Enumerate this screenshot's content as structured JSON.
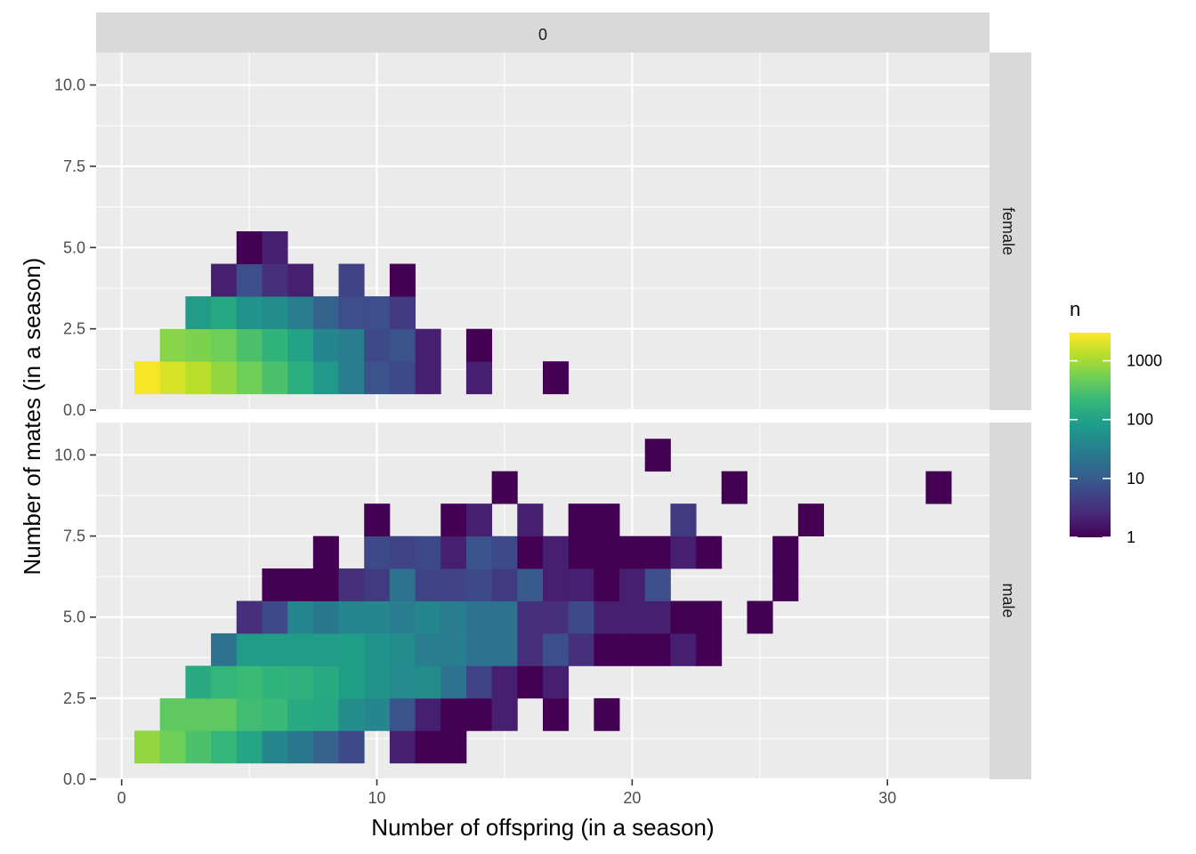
{
  "chart_data": {
    "type": "heatmap",
    "title": "",
    "xlabel": "Number of offspring (in a season)",
    "ylabel": "Number of mates (in a season)",
    "column_strip": "0",
    "xlim": [
      -1,
      34
    ],
    "ylim": [
      0,
      11
    ],
    "x_ticks": [
      0,
      10,
      20,
      30
    ],
    "x_tick_labels": [
      "0",
      "10",
      "20",
      "30"
    ],
    "y_ticks": [
      0,
      2.5,
      5,
      7.5,
      10
    ],
    "y_tick_labels": [
      "0.0",
      "2.5",
      "5.0",
      "7.5",
      "10.0"
    ],
    "bin_width": 1,
    "grid": true,
    "legend": {
      "title": "n",
      "scale": "log10",
      "placement": "right",
      "range": [
        1,
        3000
      ],
      "ticks": [
        1,
        10,
        100,
        1000
      ],
      "tick_labels": [
        "1",
        "10",
        "100",
        "1000"
      ],
      "colors": [
        "#440154",
        "#482878",
        "#3e4989",
        "#31688e",
        "#26828e",
        "#1f9e89",
        "#35b779",
        "#6ece58",
        "#b5de2b",
        "#fde725"
      ]
    },
    "panels": [
      {
        "label": "female",
        "cells": [
          {
            "x": 1,
            "y": 1,
            "n": 2800
          },
          {
            "x": 2,
            "y": 1,
            "n": 1900
          },
          {
            "x": 3,
            "y": 1,
            "n": 1300
          },
          {
            "x": 4,
            "y": 1,
            "n": 800
          },
          {
            "x": 5,
            "y": 1,
            "n": 500
          },
          {
            "x": 6,
            "y": 1,
            "n": 300
          },
          {
            "x": 7,
            "y": 1,
            "n": 150
          },
          {
            "x": 8,
            "y": 1,
            "n": 70
          },
          {
            "x": 9,
            "y": 1,
            "n": 30
          },
          {
            "x": 10,
            "y": 1,
            "n": 8
          },
          {
            "x": 11,
            "y": 1,
            "n": 6
          },
          {
            "x": 12,
            "y": 1,
            "n": 2
          },
          {
            "x": 14,
            "y": 1,
            "n": 2
          },
          {
            "x": 17,
            "y": 1,
            "n": 1
          },
          {
            "x": 2,
            "y": 2,
            "n": 700
          },
          {
            "x": 3,
            "y": 2,
            "n": 600
          },
          {
            "x": 4,
            "y": 2,
            "n": 500
          },
          {
            "x": 5,
            "y": 2,
            "n": 300
          },
          {
            "x": 6,
            "y": 2,
            "n": 180
          },
          {
            "x": 7,
            "y": 2,
            "n": 100
          },
          {
            "x": 8,
            "y": 2,
            "n": 40
          },
          {
            "x": 9,
            "y": 2,
            "n": 30
          },
          {
            "x": 10,
            "y": 2,
            "n": 6
          },
          {
            "x": 11,
            "y": 2,
            "n": 8
          },
          {
            "x": 12,
            "y": 2,
            "n": 2
          },
          {
            "x": 14,
            "y": 2,
            "n": 1
          },
          {
            "x": 3,
            "y": 3,
            "n": 80
          },
          {
            "x": 4,
            "y": 3,
            "n": 120
          },
          {
            "x": 5,
            "y": 3,
            "n": 60
          },
          {
            "x": 6,
            "y": 3,
            "n": 50
          },
          {
            "x": 7,
            "y": 3,
            "n": 30
          },
          {
            "x": 8,
            "y": 3,
            "n": 12
          },
          {
            "x": 9,
            "y": 3,
            "n": 7
          },
          {
            "x": 10,
            "y": 3,
            "n": 7
          },
          {
            "x": 11,
            "y": 3,
            "n": 4
          },
          {
            "x": 4,
            "y": 4,
            "n": 2
          },
          {
            "x": 5,
            "y": 4,
            "n": 7
          },
          {
            "x": 6,
            "y": 4,
            "n": 3
          },
          {
            "x": 7,
            "y": 4,
            "n": 2
          },
          {
            "x": 9,
            "y": 4,
            "n": 5
          },
          {
            "x": 11,
            "y": 4,
            "n": 1
          },
          {
            "x": 5,
            "y": 5,
            "n": 1
          },
          {
            "x": 6,
            "y": 5,
            "n": 2
          }
        ]
      },
      {
        "label": "male",
        "cells": [
          {
            "x": 1,
            "y": 1,
            "n": 800
          },
          {
            "x": 2,
            "y": 1,
            "n": 500
          },
          {
            "x": 3,
            "y": 1,
            "n": 300
          },
          {
            "x": 4,
            "y": 1,
            "n": 200
          },
          {
            "x": 5,
            "y": 1,
            "n": 110
          },
          {
            "x": 6,
            "y": 1,
            "n": 40
          },
          {
            "x": 7,
            "y": 1,
            "n": 25
          },
          {
            "x": 8,
            "y": 1,
            "n": 12
          },
          {
            "x": 9,
            "y": 1,
            "n": 6
          },
          {
            "x": 11,
            "y": 1,
            "n": 2
          },
          {
            "x": 12,
            "y": 1,
            "n": 1
          },
          {
            "x": 13,
            "y": 1,
            "n": 1
          },
          {
            "x": 2,
            "y": 2,
            "n": 400
          },
          {
            "x": 3,
            "y": 2,
            "n": 400
          },
          {
            "x": 4,
            "y": 2,
            "n": 400
          },
          {
            "x": 5,
            "y": 2,
            "n": 250
          },
          {
            "x": 6,
            "y": 2,
            "n": 220
          },
          {
            "x": 7,
            "y": 2,
            "n": 130
          },
          {
            "x": 8,
            "y": 2,
            "n": 120
          },
          {
            "x": 9,
            "y": 2,
            "n": 50
          },
          {
            "x": 10,
            "y": 2,
            "n": 40
          },
          {
            "x": 11,
            "y": 2,
            "n": 8
          },
          {
            "x": 12,
            "y": 2,
            "n": 2
          },
          {
            "x": 13,
            "y": 2,
            "n": 1
          },
          {
            "x": 14,
            "y": 2,
            "n": 1
          },
          {
            "x": 15,
            "y": 2,
            "n": 2
          },
          {
            "x": 17,
            "y": 2,
            "n": 1
          },
          {
            "x": 19,
            "y": 2,
            "n": 1
          },
          {
            "x": 3,
            "y": 3,
            "n": 130
          },
          {
            "x": 4,
            "y": 3,
            "n": 200
          },
          {
            "x": 5,
            "y": 3,
            "n": 230
          },
          {
            "x": 6,
            "y": 3,
            "n": 180
          },
          {
            "x": 7,
            "y": 3,
            "n": 160
          },
          {
            "x": 8,
            "y": 3,
            "n": 130
          },
          {
            "x": 9,
            "y": 3,
            "n": 90
          },
          {
            "x": 10,
            "y": 3,
            "n": 60
          },
          {
            "x": 11,
            "y": 3,
            "n": 45
          },
          {
            "x": 12,
            "y": 3,
            "n": 50
          },
          {
            "x": 13,
            "y": 3,
            "n": 20
          },
          {
            "x": 14,
            "y": 3,
            "n": 5
          },
          {
            "x": 15,
            "y": 3,
            "n": 2
          },
          {
            "x": 16,
            "y": 3,
            "n": 1
          },
          {
            "x": 17,
            "y": 3,
            "n": 2
          },
          {
            "x": 4,
            "y": 4,
            "n": 20
          },
          {
            "x": 5,
            "y": 4,
            "n": 80
          },
          {
            "x": 6,
            "y": 4,
            "n": 80
          },
          {
            "x": 7,
            "y": 4,
            "n": 80
          },
          {
            "x": 8,
            "y": 4,
            "n": 80
          },
          {
            "x": 9,
            "y": 4,
            "n": 90
          },
          {
            "x": 10,
            "y": 4,
            "n": 60
          },
          {
            "x": 11,
            "y": 4,
            "n": 50
          },
          {
            "x": 12,
            "y": 4,
            "n": 30
          },
          {
            "x": 13,
            "y": 4,
            "n": 30
          },
          {
            "x": 14,
            "y": 4,
            "n": 20
          },
          {
            "x": 15,
            "y": 4,
            "n": 20
          },
          {
            "x": 16,
            "y": 4,
            "n": 3
          },
          {
            "x": 17,
            "y": 4,
            "n": 7
          },
          {
            "x": 18,
            "y": 4,
            "n": 3
          },
          {
            "x": 19,
            "y": 4,
            "n": 1
          },
          {
            "x": 20,
            "y": 4,
            "n": 1
          },
          {
            "x": 21,
            "y": 4,
            "n": 1
          },
          {
            "x": 22,
            "y": 4,
            "n": 2
          },
          {
            "x": 23,
            "y": 4,
            "n": 1
          },
          {
            "x": 5,
            "y": 5,
            "n": 3
          },
          {
            "x": 6,
            "y": 5,
            "n": 6
          },
          {
            "x": 7,
            "y": 5,
            "n": 40
          },
          {
            "x": 8,
            "y": 5,
            "n": 25
          },
          {
            "x": 9,
            "y": 5,
            "n": 40
          },
          {
            "x": 10,
            "y": 5,
            "n": 40
          },
          {
            "x": 11,
            "y": 5,
            "n": 30
          },
          {
            "x": 12,
            "y": 5,
            "n": 40
          },
          {
            "x": 13,
            "y": 5,
            "n": 30
          },
          {
            "x": 14,
            "y": 5,
            "n": 20
          },
          {
            "x": 15,
            "y": 5,
            "n": 20
          },
          {
            "x": 16,
            "y": 5,
            "n": 3
          },
          {
            "x": 17,
            "y": 5,
            "n": 3
          },
          {
            "x": 18,
            "y": 5,
            "n": 6
          },
          {
            "x": 19,
            "y": 5,
            "n": 2
          },
          {
            "x": 20,
            "y": 5,
            "n": 2
          },
          {
            "x": 21,
            "y": 5,
            "n": 2
          },
          {
            "x": 22,
            "y": 5,
            "n": 1
          },
          {
            "x": 23,
            "y": 5,
            "n": 1
          },
          {
            "x": 25,
            "y": 5,
            "n": 1
          },
          {
            "x": 6,
            "y": 6,
            "n": 1
          },
          {
            "x": 7,
            "y": 6,
            "n": 1
          },
          {
            "x": 8,
            "y": 6,
            "n": 1
          },
          {
            "x": 9,
            "y": 6,
            "n": 3
          },
          {
            "x": 10,
            "y": 6,
            "n": 4
          },
          {
            "x": 11,
            "y": 6,
            "n": 20
          },
          {
            "x": 12,
            "y": 6,
            "n": 5
          },
          {
            "x": 13,
            "y": 6,
            "n": 5
          },
          {
            "x": 14,
            "y": 6,
            "n": 6
          },
          {
            "x": 15,
            "y": 6,
            "n": 4
          },
          {
            "x": 16,
            "y": 6,
            "n": 10
          },
          {
            "x": 17,
            "y": 6,
            "n": 2
          },
          {
            "x": 18,
            "y": 6,
            "n": 2
          },
          {
            "x": 19,
            "y": 6,
            "n": 1
          },
          {
            "x": 20,
            "y": 6,
            "n": 2
          },
          {
            "x": 21,
            "y": 6,
            "n": 7
          },
          {
            "x": 26,
            "y": 6,
            "n": 1
          },
          {
            "x": 8,
            "y": 7,
            "n": 1
          },
          {
            "x": 10,
            "y": 7,
            "n": 6
          },
          {
            "x": 11,
            "y": 7,
            "n": 5
          },
          {
            "x": 12,
            "y": 7,
            "n": 6
          },
          {
            "x": 13,
            "y": 7,
            "n": 2
          },
          {
            "x": 14,
            "y": 7,
            "n": 8
          },
          {
            "x": 15,
            "y": 7,
            "n": 6
          },
          {
            "x": 16,
            "y": 7,
            "n": 1
          },
          {
            "x": 17,
            "y": 7,
            "n": 2
          },
          {
            "x": 18,
            "y": 7,
            "n": 1
          },
          {
            "x": 19,
            "y": 7,
            "n": 1
          },
          {
            "x": 20,
            "y": 7,
            "n": 1
          },
          {
            "x": 21,
            "y": 7,
            "n": 1
          },
          {
            "x": 22,
            "y": 7,
            "n": 2
          },
          {
            "x": 23,
            "y": 7,
            "n": 1
          },
          {
            "x": 26,
            "y": 7,
            "n": 1
          },
          {
            "x": 10,
            "y": 8,
            "n": 1
          },
          {
            "x": 13,
            "y": 8,
            "n": 1
          },
          {
            "x": 14,
            "y": 8,
            "n": 2
          },
          {
            "x": 16,
            "y": 8,
            "n": 2
          },
          {
            "x": 18,
            "y": 8,
            "n": 1
          },
          {
            "x": 19,
            "y": 8,
            "n": 1
          },
          {
            "x": 22,
            "y": 8,
            "n": 4
          },
          {
            "x": 27,
            "y": 8,
            "n": 1
          },
          {
            "x": 15,
            "y": 9,
            "n": 1
          },
          {
            "x": 24,
            "y": 9,
            "n": 1
          },
          {
            "x": 32,
            "y": 9,
            "n": 1
          },
          {
            "x": 21,
            "y": 10,
            "n": 1
          }
        ]
      }
    ]
  }
}
